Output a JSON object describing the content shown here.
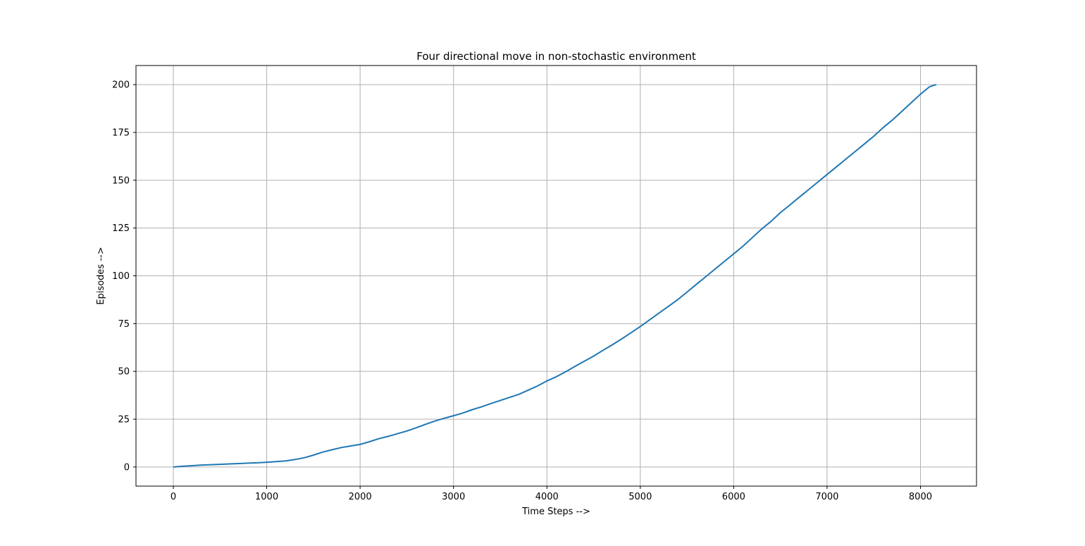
{
  "chart_data": {
    "type": "line",
    "title": "Four directional move in non-stochastic environment",
    "xlabel": "Time Steps -->",
    "ylabel": "Episodes -->",
    "xlim": [
      -400,
      8600
    ],
    "ylim": [
      -10,
      210
    ],
    "xticks": [
      0,
      1000,
      2000,
      3000,
      4000,
      5000,
      6000,
      7000,
      8000
    ],
    "yticks": [
      0,
      25,
      50,
      75,
      100,
      125,
      150,
      175,
      200
    ],
    "xtick_labels": [
      "0",
      "1000",
      "2000",
      "3000",
      "4000",
      "5000",
      "6000",
      "7000",
      "8000"
    ],
    "ytick_labels": [
      "0",
      "25",
      "50",
      "75",
      "100",
      "125",
      "150",
      "175",
      "200"
    ],
    "grid": true,
    "legend": "none",
    "series": [
      {
        "color": "#1f77b4",
        "x": [
          0,
          100,
          200,
          300,
          400,
          500,
          600,
          700,
          800,
          900,
          1000,
          1100,
          1200,
          1300,
          1400,
          1500,
          1600,
          1700,
          1800,
          1900,
          2000,
          2100,
          2200,
          2300,
          2400,
          2500,
          2600,
          2700,
          2800,
          2900,
          3000,
          3100,
          3200,
          3300,
          3400,
          3500,
          3600,
          3700,
          3800,
          3900,
          4000,
          4100,
          4200,
          4300,
          4400,
          4500,
          4600,
          4700,
          4800,
          4900,
          5000,
          5100,
          5200,
          5300,
          5400,
          5500,
          5600,
          5700,
          5800,
          5900,
          6000,
          6100,
          6200,
          6300,
          6400,
          6500,
          6600,
          6700,
          6800,
          6900,
          7000,
          7100,
          7200,
          7300,
          7400,
          7500,
          7600,
          7700,
          7800,
          7900,
          8000,
          8100,
          8170
        ],
        "y": [
          0,
          0.4,
          0.7,
          1.0,
          1.2,
          1.4,
          1.6,
          1.8,
          2.0,
          2.2,
          2.5,
          2.8,
          3.2,
          3.9,
          4.8,
          6.2,
          7.8,
          9.0,
          10.2,
          11.0,
          11.8,
          13.2,
          14.8,
          16.0,
          17.4,
          18.8,
          20.5,
          22.3,
          24.0,
          25.5,
          26.8,
          28.2,
          30.0,
          31.5,
          33.2,
          34.8,
          36.4,
          38.0,
          40.2,
          42.4,
          45.0,
          47.2,
          49.8,
          52.6,
          55.3,
          58.0,
          61.0,
          63.9,
          67.0,
          70.2,
          73.5,
          77.0,
          80.5,
          84.0,
          87.5,
          91.5,
          95.5,
          99.5,
          103.5,
          107.5,
          111.5,
          115.5,
          120.0,
          124.5,
          128.5,
          133.0,
          137.0,
          141.0,
          145.0,
          149.0,
          153.0,
          157.0,
          161.0,
          165.0,
          169.0,
          173.0,
          177.5,
          181.5,
          186.0,
          190.5,
          195.0,
          199.0,
          200.0
        ]
      }
    ]
  }
}
